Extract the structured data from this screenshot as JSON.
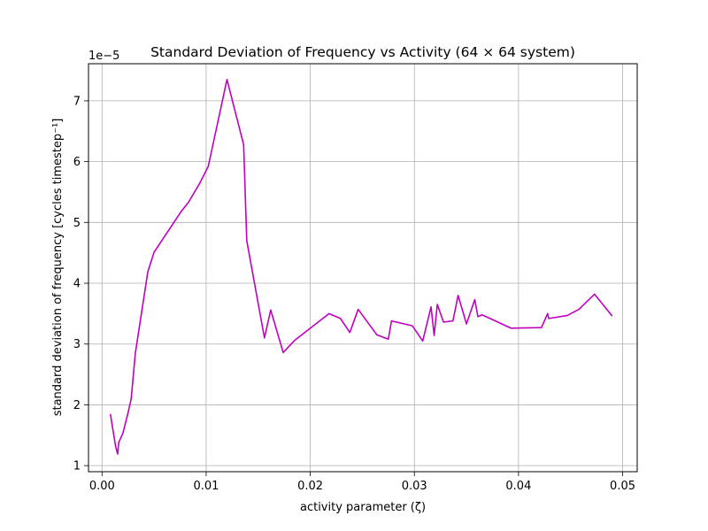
{
  "chart_data": {
    "type": "line",
    "title": "Standard Deviation of Frequency vs Activity (64 × 64 system)",
    "xlabel": "activity parameter (ζ)",
    "ylabel": "standard deviation of frequency [cycles timestep⁻¹]",
    "y_offset_label": "1e−5",
    "xlim": [
      -0.0013,
      0.0514
    ],
    "ylim": [
      0.9,
      7.61
    ],
    "x_ticks": [
      0.0,
      0.01,
      0.02,
      0.03,
      0.04,
      0.05
    ],
    "x_tick_labels": [
      "0.00",
      "0.01",
      "0.02",
      "0.03",
      "0.04",
      "0.05"
    ],
    "y_ticks": [
      1,
      2,
      3,
      4,
      5,
      6,
      7
    ],
    "y_tick_labels": [
      "1",
      "2",
      "3",
      "4",
      "5",
      "6",
      "7"
    ],
    "grid": true,
    "series": [
      {
        "color": "#bf00bf",
        "x": [
          0.0008,
          0.0013,
          0.0015,
          0.0016,
          0.002,
          0.0025,
          0.0028,
          0.0032,
          0.0044,
          0.005,
          0.0076,
          0.0083,
          0.0094,
          0.0102,
          0.012,
          0.0136,
          0.0139,
          0.0156,
          0.0162,
          0.0174,
          0.0185,
          0.0218,
          0.0229,
          0.0238,
          0.0246,
          0.0264,
          0.0275,
          0.0278,
          0.0298,
          0.0308,
          0.0316,
          0.0319,
          0.0322,
          0.0328,
          0.0337,
          0.0342,
          0.035,
          0.0358,
          0.0361,
          0.0365,
          0.0393,
          0.0422,
          0.0428,
          0.0429,
          0.0447,
          0.0458,
          0.0473,
          0.049
        ],
        "values": [
          1.85,
          1.32,
          1.19,
          1.38,
          1.53,
          1.87,
          2.1,
          2.85,
          4.19,
          4.51,
          5.18,
          5.33,
          5.65,
          5.92,
          7.35,
          6.28,
          4.7,
          3.1,
          3.56,
          2.86,
          3.06,
          3.5,
          3.42,
          3.19,
          3.57,
          3.15,
          3.08,
          3.38,
          3.3,
          3.05,
          3.61,
          3.14,
          3.65,
          3.36,
          3.38,
          3.8,
          3.33,
          3.73,
          3.45,
          3.48,
          3.26,
          3.27,
          3.5,
          3.42,
          3.47,
          3.57,
          3.82,
          3.46
        ]
      }
    ]
  }
}
